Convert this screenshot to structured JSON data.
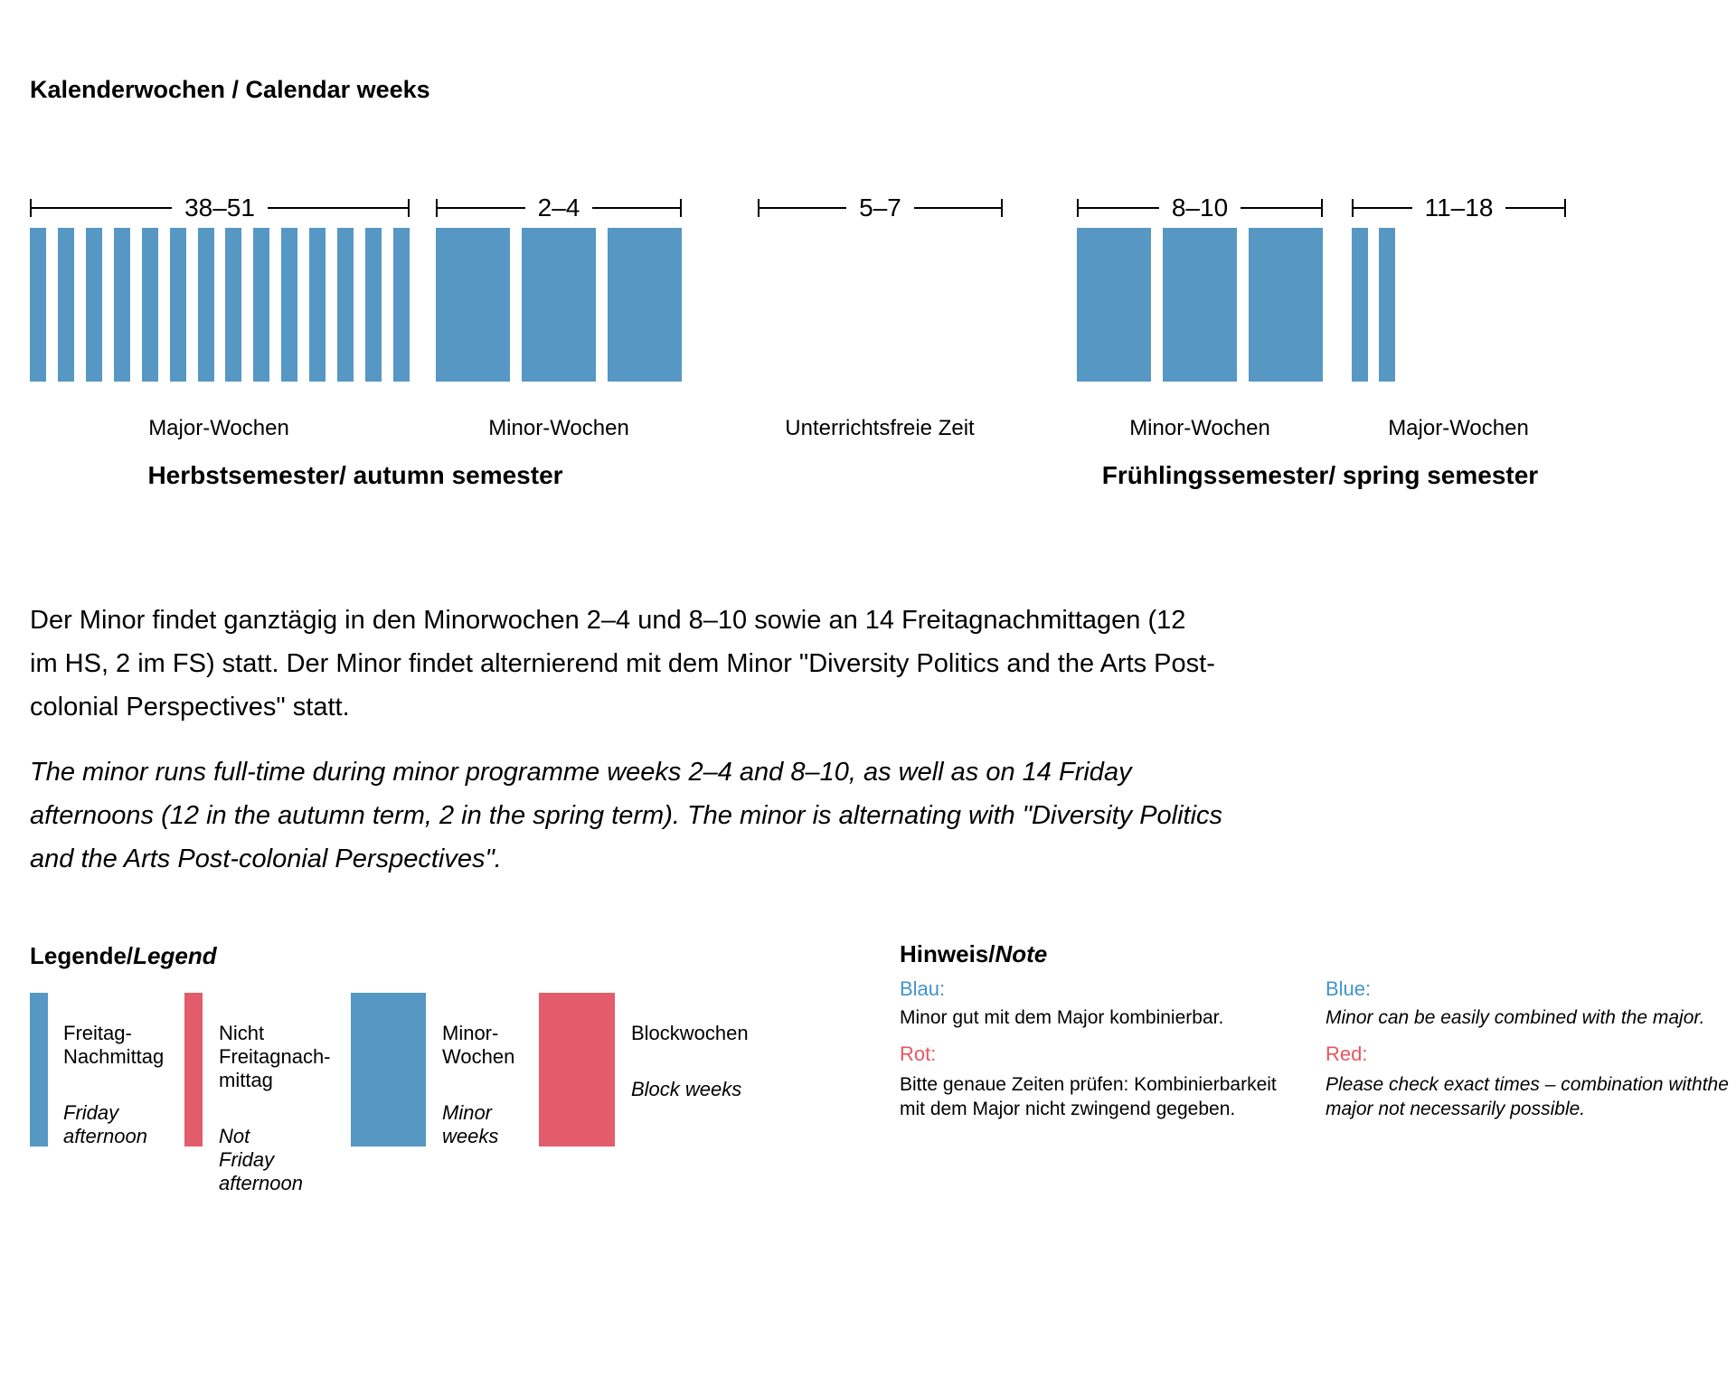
{
  "title": "Kalenderwochen / Calendar weeks",
  "colors": {
    "blue": "#5697C4",
    "red": "#E25C6B",
    "note_blue": "#4193CE",
    "note_red": "#EA5560"
  },
  "chart_data": {
    "type": "bar",
    "title": "Kalenderwochen / Calendar weeks",
    "xlabel": "Kalenderwochen (calendar weeks)",
    "legend_position": "bottom-left",
    "groups": [
      {
        "weeks": "38–51",
        "bar_count": 14,
        "bar_style": "thin",
        "label": "Major-Wochen",
        "semester": "Herbstsemester/ autumn semester"
      },
      {
        "weeks": "2–4",
        "bar_count": 3,
        "bar_style": "wide",
        "label": "Minor-Wochen",
        "semester": "Herbstsemester/ autumn semester"
      },
      {
        "weeks": "5–7",
        "bar_count": 0,
        "bar_style": "none",
        "label": "Unterrichtsfreie Zeit",
        "semester": ""
      },
      {
        "weeks": "8–10",
        "bar_count": 3,
        "bar_style": "wide",
        "label": "Minor-Wochen",
        "semester": "Frühlingssemester/ spring semester"
      },
      {
        "weeks": "11–18",
        "bar_count": 2,
        "bar_style": "thin",
        "label": "Major-Wochen",
        "semester": "Frühlingssemester/ spring semester"
      }
    ],
    "semesters": [
      "Herbstsemester/ autumn semester",
      "Frühlingssemester/ spring semester"
    ]
  },
  "paragraphs": {
    "de": "Der Minor findet ganztägig in den Minorwochen 2–4 und 8–10 sowie an 14 Freitagnachmittagen (12\nim HS, 2 im FS) statt. Der Minor findet alternierend mit dem Minor \"Diversity Politics and the Arts Post-\ncolonial Perspectives\" statt.",
    "en": "The minor runs full-time during minor programme weeks 2–4 and 8–10, as well as on 14 Friday\nafternoons (12 in the autumn term, 2 in the spring term). The minor is alternating with \"Diversity Politics\nand the Arts Post-colonial Perspectives\"."
  },
  "legend": {
    "heading_de": "Legende/",
    "heading_en": "Legend",
    "items": [
      {
        "swatch": "thin-blue",
        "de": "Freitag-\nNachmittag",
        "en": "Friday\nafternoon"
      },
      {
        "swatch": "thin-red",
        "de": "Nicht\nFreitagnach-\nmittag",
        "en": "Not\nFriday\nafternoon"
      },
      {
        "swatch": "wide-blue",
        "de": "Minor-\nWochen",
        "en": "Minor\nweeks"
      },
      {
        "swatch": "wide-red",
        "de": "Blockwochen",
        "en": "Block weeks"
      }
    ]
  },
  "note": {
    "heading_de": "Hinweis/",
    "heading_en": "Note",
    "de": {
      "blue_label": "Blau:",
      "blue_text": "Minor gut mit dem Major kombinierbar.",
      "red_label": "Rot:",
      "red_text": "Bitte genaue Zeiten prüfen: Kombinierbarkeit\nmit dem Major nicht zwingend gegeben."
    },
    "en": {
      "blue_label": "Blue:",
      "blue_text": "Minor can be easily combined with the major.",
      "red_label": "Red:",
      "red_text": "Please check exact times – combination withthe\nmajor not necessarily possible."
    }
  }
}
